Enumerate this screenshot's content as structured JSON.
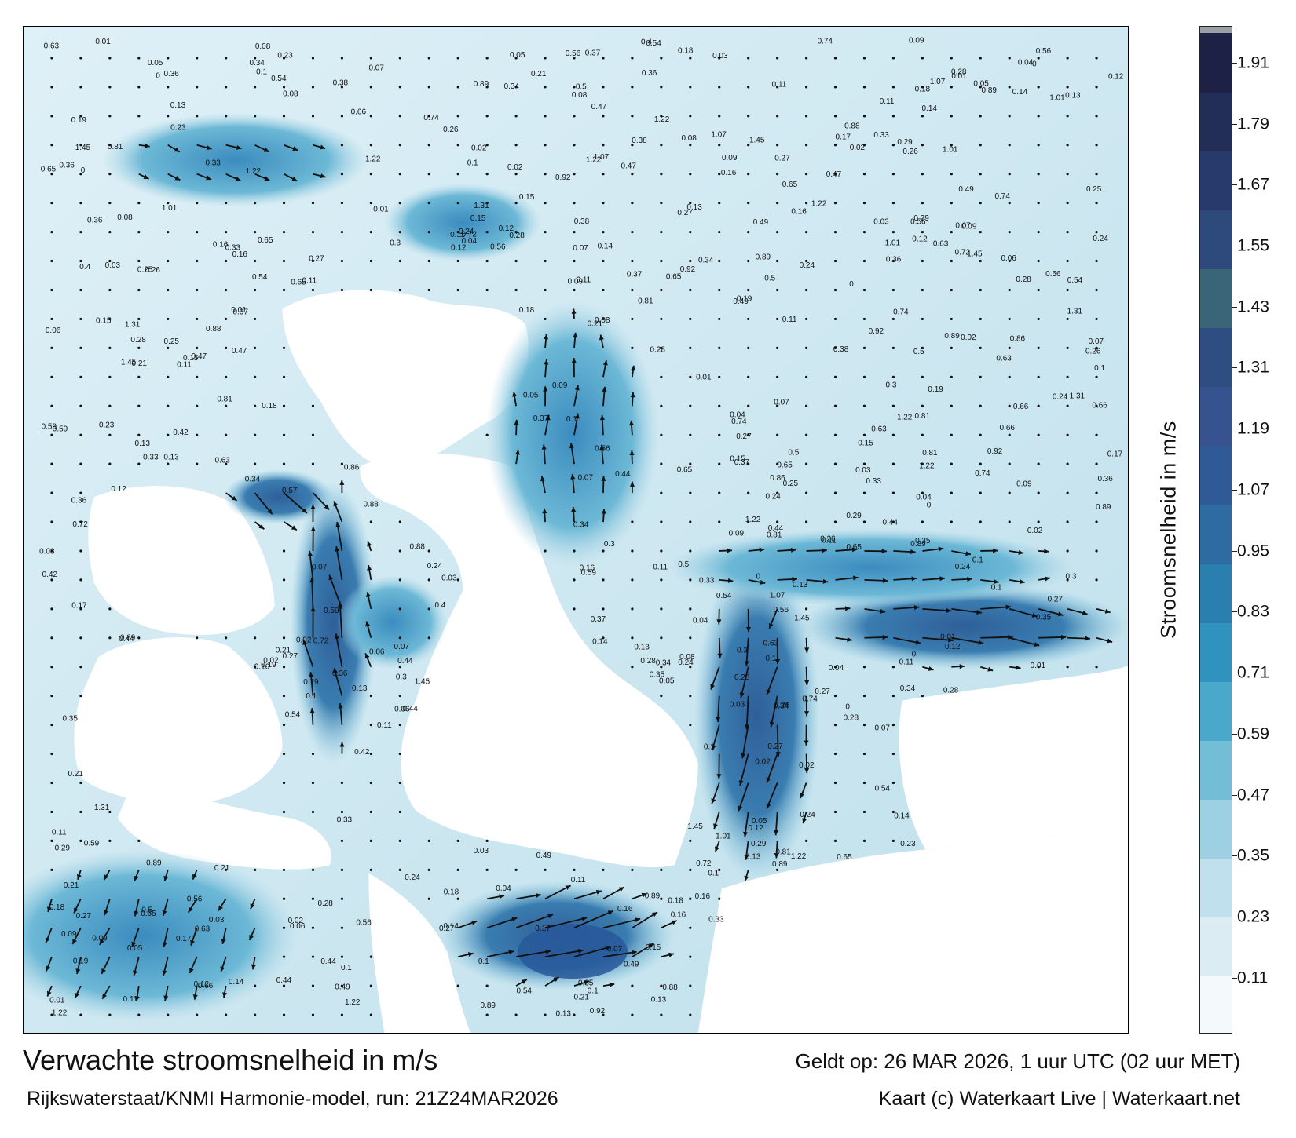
{
  "title": "Verwachte stroomsnelheid in m/s",
  "subtitle": "Rijkswaterstaat/KNMI Harmonie-model, run: 21Z24MAR2026",
  "valid_time": "Geldt op: 26 MAR 2026, 1 uur UTC (02 uur MET)",
  "credit": "Kaart (c) Waterkaart Live | Waterkaart.net",
  "colorbar": {
    "label": "Stroomsnelheid in m/s",
    "ticks": [
      "0.11",
      "0.23",
      "0.35",
      "0.47",
      "0.59",
      "0.71",
      "0.83",
      "0.95",
      "1.07",
      "1.19",
      "1.31",
      "1.43",
      "1.55",
      "1.67",
      "1.79",
      "1.91"
    ],
    "colors": [
      "#f4fafc",
      "#dcecf3",
      "#bfe0ec",
      "#9dd0e3",
      "#74bdd7",
      "#4aa8cb",
      "#2f93bd",
      "#2a7fae",
      "#2d6ba0",
      "#2f5a96",
      "#36528f",
      "#2e4d80",
      "#3a6478",
      "#2e4a7d",
      "#283a6b",
      "#222d58",
      "#1c2145"
    ],
    "max_color": "#9aa0a6",
    "range": [
      0,
      1.97
    ]
  },
  "map": {
    "water_color_low": "#e2f0f6",
    "water_color_mid": "#5ab1d2",
    "water_color_high": "#2a6a9c",
    "land_color": "#ffffff",
    "sample_labels": [
      "0.24",
      "0.15",
      "0.08",
      "0.23",
      "0.13",
      "0.19",
      "0.12",
      "0.16",
      "0.18",
      "0.1",
      "1.45",
      "1.31",
      "1.22",
      "1.07",
      "1.01",
      "0.92",
      "0.89",
      "0.88",
      "0.86",
      "0.81",
      "0.74",
      "0.72",
      "0.66",
      "0.65",
      "0.63",
      "0.59",
      "0.54",
      "0.5",
      "0.47",
      "0.42",
      "0.4",
      "0.38",
      "0.37",
      "0.36",
      "0.34",
      "0.3",
      "0.28",
      "0.27",
      "0.26",
      "0.21",
      "0.17",
      "0.14",
      "0.11",
      "0.09",
      "0.07",
      "0.06",
      "0.05",
      "0.04",
      "0.03",
      "0.02",
      "0.01",
      "0",
      "0.44",
      "0.35",
      "0.29",
      "0.25",
      "0.33",
      "0.56",
      "0.49",
      "0.57"
    ]
  }
}
